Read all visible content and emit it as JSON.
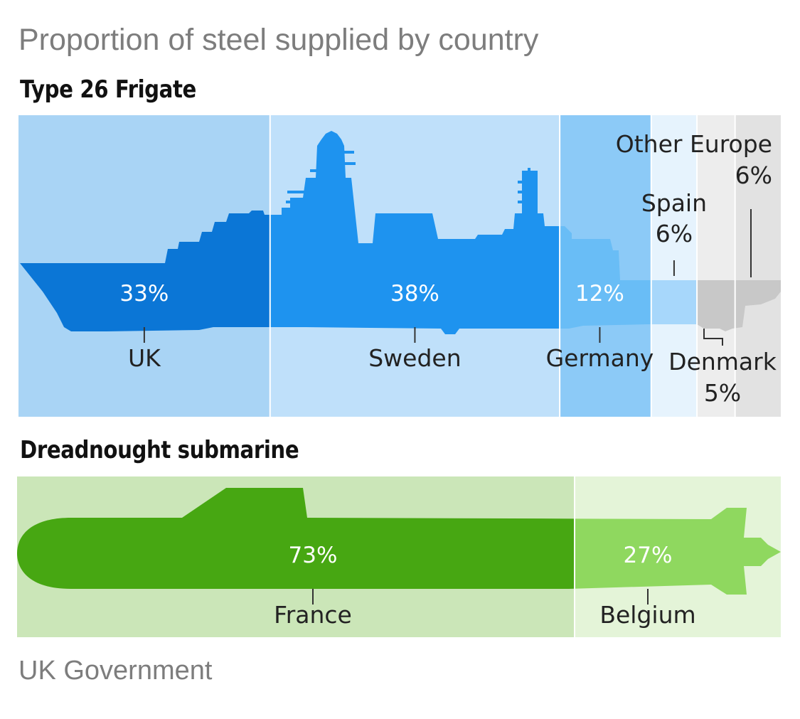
{
  "title": "Proportion of steel supplied by country",
  "source": "UK Government",
  "chart_data": [
    {
      "type": "bar",
      "title": "Type 26 Frigate",
      "stacked": true,
      "orientation": "horizontal",
      "categories": [
        "UK",
        "Sweden",
        "Germany",
        "Spain",
        "Denmark",
        "Other Europe"
      ],
      "values": [
        33,
        38,
        12,
        6,
        5,
        6
      ],
      "labels": [
        "33%",
        "38%",
        "12%",
        "6%",
        "5%",
        "6%"
      ],
      "colors": [
        "#0b76d6",
        "#1e93ef",
        "#69bdf6",
        "#a7d7fb",
        "#c8c8c8",
        "#c8c8c8"
      ],
      "bg_colors": [
        "#a9d4f5",
        "#bfe0fa",
        "#8ccaf7",
        "#e6f3fd",
        "#ededed",
        "#e2e2e2"
      ]
    },
    {
      "type": "bar",
      "title": "Dreadnought submarine",
      "stacked": true,
      "orientation": "horizontal",
      "categories": [
        "France",
        "Belgium"
      ],
      "values": [
        73,
        27
      ],
      "labels": [
        "73%",
        "27%"
      ],
      "colors": [
        "#47a712",
        "#8fd85f"
      ],
      "bg_colors": [
        "#cbe6b8",
        "#e4f4d8"
      ]
    }
  ]
}
